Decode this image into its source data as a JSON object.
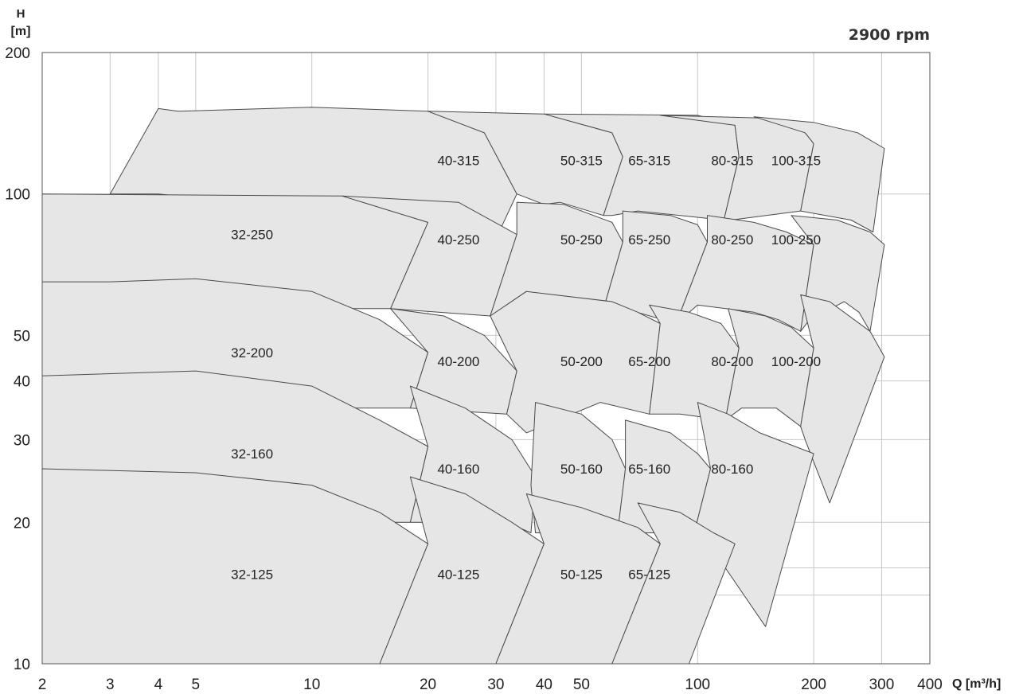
{
  "chart_data": {
    "type": "area",
    "speed_label": "2900 rpm",
    "y_title_line1": "H",
    "y_title_line2": "[m]",
    "x_title": "Q [m³/h]",
    "x_scale": "log",
    "y_scale": "log",
    "xlim": [
      2,
      400
    ],
    "ylim": [
      10,
      200
    ],
    "x_ticks": [
      2,
      3,
      4,
      5,
      10,
      20,
      30,
      40,
      50,
      100,
      200,
      300,
      400
    ],
    "y_ticks": [
      10,
      20,
      30,
      40,
      50,
      100,
      200
    ],
    "grid": true,
    "colors": {
      "area": "#e6e6e6",
      "outline": "#4a4a4a",
      "grid": "#c8c8c8"
    },
    "series": [
      {
        "name": "40-315",
        "label_at": [
          24,
          118
        ],
        "outline": [
          [
            4,
            152
          ],
          [
            4.5,
            150
          ],
          [
            10,
            153
          ],
          [
            20,
            150
          ],
          [
            28,
            135
          ],
          [
            34,
            100
          ],
          [
            31,
            85
          ],
          [
            4,
            100
          ],
          [
            3,
            100
          ],
          [
            4,
            152
          ]
        ]
      },
      {
        "name": "50-315",
        "label_at": [
          50,
          118
        ],
        "outline": [
          [
            20,
            150
          ],
          [
            40,
            148
          ],
          [
            60,
            135
          ],
          [
            64,
            120
          ],
          [
            57,
            90
          ],
          [
            44,
            96
          ],
          [
            40,
            95
          ],
          [
            34,
            100
          ],
          [
            28,
            135
          ],
          [
            20,
            150
          ]
        ]
      },
      {
        "name": "65-315",
        "label_at": [
          75,
          118
        ],
        "outline": [
          [
            40,
            148
          ],
          [
            100,
            147
          ],
          [
            125,
            140
          ],
          [
            128,
            120
          ],
          [
            117,
            88
          ],
          [
            70,
            92
          ],
          [
            60,
            90
          ],
          [
            57,
            90
          ],
          [
            64,
            120
          ],
          [
            60,
            135
          ],
          [
            40,
            148
          ]
        ]
      },
      {
        "name": "80-315",
        "label_at": [
          123,
          118
        ],
        "outline": [
          [
            80,
            147
          ],
          [
            150,
            145
          ],
          [
            190,
            135
          ],
          [
            200,
            128
          ],
          [
            185,
            92
          ],
          [
            122,
            88
          ],
          [
            117,
            88
          ],
          [
            128,
            120
          ],
          [
            125,
            140
          ],
          [
            80,
            147
          ]
        ]
      },
      {
        "name": "100-315",
        "label_at": [
          180,
          118
        ],
        "outline": [
          [
            140,
            146
          ],
          [
            200,
            142
          ],
          [
            260,
            135
          ],
          [
            305,
            125
          ],
          [
            285,
            83
          ],
          [
            250,
            88
          ],
          [
            185,
            92
          ],
          [
            200,
            128
          ],
          [
            190,
            135
          ],
          [
            140,
            146
          ]
        ]
      },
      {
        "name": "32-250",
        "label_at": [
          7,
          82
        ],
        "outline": [
          [
            2,
            100
          ],
          [
            12,
            99
          ],
          [
            20,
            87
          ],
          [
            16,
            57
          ],
          [
            2,
            57
          ],
          [
            2,
            100
          ]
        ]
      },
      {
        "name": "40-250",
        "label_at": [
          24,
          80
        ],
        "outline": [
          [
            12,
            99
          ],
          [
            24,
            96
          ],
          [
            34,
            82
          ],
          [
            29,
            55
          ],
          [
            16,
            57
          ],
          [
            20,
            87
          ],
          [
            12,
            99
          ]
        ]
      },
      {
        "name": "50-250",
        "label_at": [
          50,
          80
        ],
        "outline": [
          [
            34,
            96
          ],
          [
            45,
            95
          ],
          [
            60,
            87
          ],
          [
            64,
            79
          ],
          [
            56,
            54
          ],
          [
            44,
            57
          ],
          [
            36,
            62
          ],
          [
            29,
            55
          ],
          [
            34,
            82
          ],
          [
            34,
            96
          ]
        ]
      },
      {
        "name": "65-250",
        "label_at": [
          75,
          80
        ],
        "outline": [
          [
            64,
            92
          ],
          [
            85,
            90
          ],
          [
            100,
            86
          ],
          [
            106,
            79
          ],
          [
            88,
            53
          ],
          [
            60,
            58
          ],
          [
            56,
            54
          ],
          [
            64,
            79
          ],
          [
            64,
            92
          ]
        ]
      },
      {
        "name": "80-250",
        "label_at": [
          123,
          80
        ],
        "outline": [
          [
            106,
            90
          ],
          [
            140,
            87
          ],
          [
            170,
            83
          ],
          [
            200,
            78
          ],
          [
            185,
            51
          ],
          [
            162,
            54
          ],
          [
            140,
            56
          ],
          [
            100,
            58
          ],
          [
            88,
            53
          ],
          [
            106,
            79
          ],
          [
            106,
            90
          ]
        ]
      },
      {
        "name": "100-250",
        "label_at": [
          180,
          80
        ],
        "outline": [
          [
            175,
            90
          ],
          [
            230,
            88
          ],
          [
            280,
            83
          ],
          [
            305,
            78
          ],
          [
            280,
            51
          ],
          [
            262,
            56
          ],
          [
            240,
            59
          ],
          [
            195,
            54
          ],
          [
            185,
            51
          ],
          [
            200,
            78
          ],
          [
            175,
            90
          ]
        ]
      },
      {
        "name": "32-200",
        "label_at": [
          7,
          46
        ],
        "outline": [
          [
            2,
            65
          ],
          [
            3,
            65
          ],
          [
            5,
            66
          ],
          [
            10,
            62
          ],
          [
            15,
            54
          ],
          [
            20,
            46
          ],
          [
            18,
            35
          ],
          [
            2,
            35
          ],
          [
            2,
            65
          ]
        ]
      },
      {
        "name": "40-200",
        "label_at": [
          24,
          44
        ],
        "outline": [
          [
            16,
            57
          ],
          [
            22,
            55
          ],
          [
            28,
            50
          ],
          [
            34,
            42
          ],
          [
            32,
            34
          ],
          [
            18,
            35
          ],
          [
            20,
            46
          ],
          [
            16,
            57
          ]
        ]
      },
      {
        "name": "50-200",
        "label_at": [
          50,
          44
        ],
        "outline": [
          [
            36,
            62
          ],
          [
            60,
            59
          ],
          [
            70,
            56
          ],
          [
            80,
            53
          ],
          [
            75,
            34
          ],
          [
            56,
            36
          ],
          [
            36,
            31
          ],
          [
            32,
            34
          ],
          [
            34,
            42
          ],
          [
            29,
            55
          ],
          [
            36,
            62
          ]
        ]
      },
      {
        "name": "65-200",
        "label_at": [
          75,
          44
        ],
        "outline": [
          [
            75,
            58
          ],
          [
            95,
            56
          ],
          [
            115,
            53
          ],
          [
            128,
            47
          ],
          [
            118,
            33
          ],
          [
            90,
            34
          ],
          [
            75,
            34
          ],
          [
            80,
            53
          ],
          [
            75,
            58
          ]
        ]
      },
      {
        "name": "80-200",
        "label_at": [
          123,
          44
        ],
        "outline": [
          [
            120,
            57
          ],
          [
            150,
            55
          ],
          [
            175,
            52
          ],
          [
            200,
            47
          ],
          [
            185,
            32
          ],
          [
            160,
            35
          ],
          [
            130,
            35
          ],
          [
            118,
            33
          ],
          [
            128,
            47
          ],
          [
            120,
            57
          ]
        ]
      },
      {
        "name": "100-200",
        "label_at": [
          180,
          44
        ],
        "outline": [
          [
            185,
            61
          ],
          [
            220,
            59
          ],
          [
            280,
            51
          ],
          [
            305,
            45
          ],
          [
            220,
            22
          ],
          [
            190,
            30
          ],
          [
            185,
            32
          ],
          [
            200,
            47
          ],
          [
            185,
            61
          ]
        ]
      },
      {
        "name": "32-160",
        "label_at": [
          7,
          28
        ],
        "outline": [
          [
            2,
            41
          ],
          [
            5,
            42
          ],
          [
            10,
            39
          ],
          [
            15,
            33
          ],
          [
            20,
            29
          ],
          [
            18,
            20
          ],
          [
            2,
            20
          ],
          [
            2,
            41
          ]
        ]
      },
      {
        "name": "40-160",
        "label_at": [
          24,
          26
        ],
        "outline": [
          [
            18,
            39
          ],
          [
            25,
            35
          ],
          [
            33,
            30
          ],
          [
            38,
            25
          ],
          [
            37,
            19
          ],
          [
            32,
            20
          ],
          [
            18,
            20
          ],
          [
            20,
            29
          ],
          [
            18,
            39
          ]
        ]
      },
      {
        "name": "50-160",
        "label_at": [
          50,
          26
        ],
        "outline": [
          [
            38,
            36
          ],
          [
            50,
            34
          ],
          [
            60,
            30
          ],
          [
            65,
            26
          ],
          [
            62,
            19
          ],
          [
            38,
            19
          ],
          [
            37,
            24
          ],
          [
            38,
            36
          ]
        ]
      },
      {
        "name": "65-160",
        "label_at": [
          75,
          26
        ],
        "outline": [
          [
            65,
            33
          ],
          [
            85,
            31
          ],
          [
            100,
            28
          ],
          [
            108,
            26
          ],
          [
            98,
            19
          ],
          [
            62,
            19
          ],
          [
            65,
            26
          ],
          [
            65,
            33
          ]
        ]
      },
      {
        "name": "80-160",
        "label_at": [
          123,
          26
        ],
        "outline": [
          [
            100,
            36
          ],
          [
            120,
            34
          ],
          [
            145,
            31
          ],
          [
            200,
            28
          ],
          [
            150,
            12
          ],
          [
            118,
            16
          ],
          [
            98,
            19
          ],
          [
            108,
            26
          ],
          [
            100,
            36
          ]
        ]
      },
      {
        "name": "32-125",
        "label_at": [
          7,
          15.5
        ],
        "outline": [
          [
            2,
            26
          ],
          [
            5,
            25.5
          ],
          [
            10,
            24
          ],
          [
            15,
            21
          ],
          [
            20,
            18
          ],
          [
            15,
            10
          ],
          [
            2,
            10
          ],
          [
            2,
            26
          ]
        ]
      },
      {
        "name": "40-125",
        "label_at": [
          24,
          15.5
        ],
        "outline": [
          [
            18,
            25
          ],
          [
            25,
            23
          ],
          [
            33,
            20
          ],
          [
            40,
            18
          ],
          [
            30,
            10
          ],
          [
            20,
            10
          ],
          [
            15,
            10
          ],
          [
            20,
            18
          ],
          [
            18,
            25
          ]
        ]
      },
      {
        "name": "50-125",
        "label_at": [
          50,
          15.5
        ],
        "outline": [
          [
            36,
            23
          ],
          [
            50,
            21.5
          ],
          [
            70,
            19.5
          ],
          [
            80,
            18
          ],
          [
            60,
            10
          ],
          [
            30,
            10
          ],
          [
            40,
            18
          ],
          [
            36,
            23
          ]
        ]
      },
      {
        "name": "65-125",
        "label_at": [
          75,
          15.5
        ],
        "outline": [
          [
            70,
            22
          ],
          [
            90,
            21
          ],
          [
            110,
            19
          ],
          [
            125,
            18
          ],
          [
            95,
            10
          ],
          [
            60,
            10
          ],
          [
            80,
            18
          ],
          [
            70,
            22
          ]
        ]
      }
    ]
  }
}
